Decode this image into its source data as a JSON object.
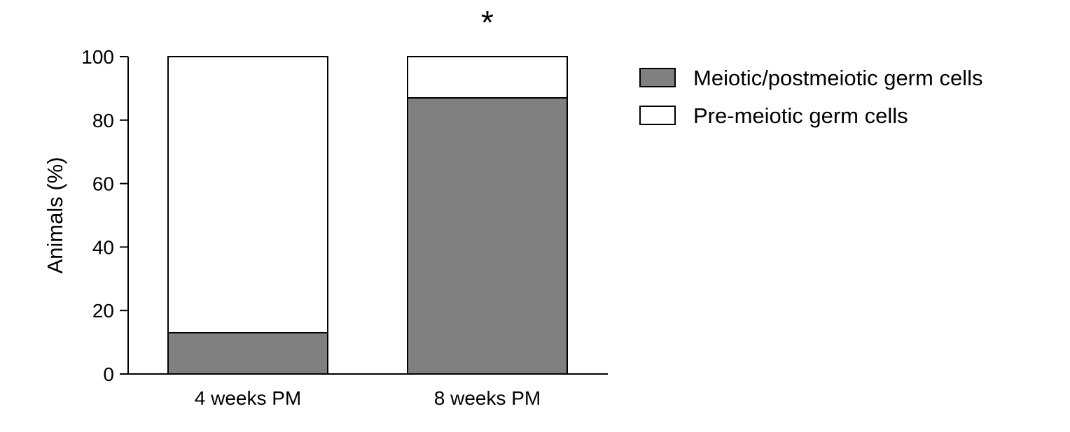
{
  "chart_data": {
    "type": "bar",
    "stacked": true,
    "categories": [
      "4 weeks PM",
      "8 weeks PM"
    ],
    "series": [
      {
        "name": "Meiotic/postmeiotic germ cells",
        "values": [
          13,
          87
        ],
        "color": "#808080"
      },
      {
        "name": "Pre-meiotic germ cells",
        "values": [
          87,
          13
        ],
        "color": "#ffffff"
      }
    ],
    "ylabel": "Animals (%)",
    "xlabel": "",
    "ylim": [
      0,
      100
    ],
    "yticks": [
      0,
      20,
      40,
      60,
      80,
      100
    ],
    "grid": false,
    "legend_position": "right",
    "annotations": [
      {
        "text": "*",
        "category": "8 weeks PM"
      }
    ]
  }
}
